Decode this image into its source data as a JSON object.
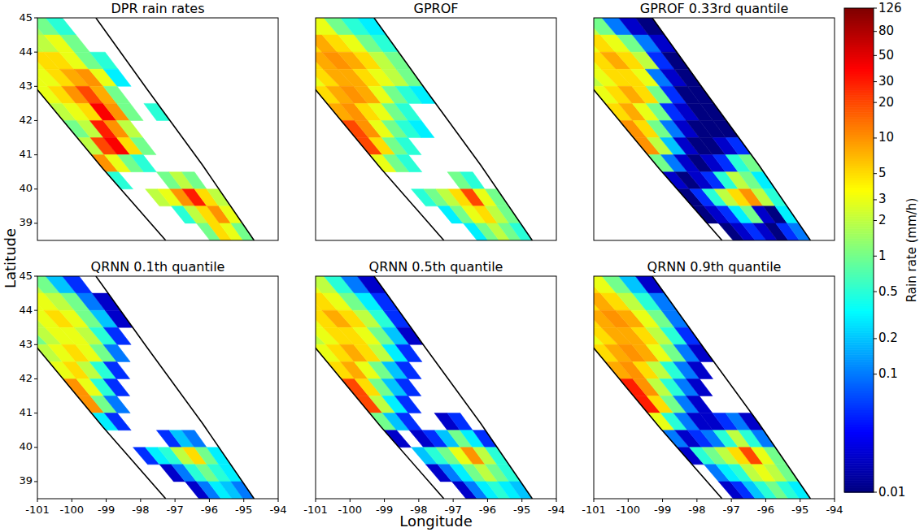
{
  "figure": {
    "xlabel": "Longitude",
    "ylabel": "Latitude",
    "lat_bins": [
      45,
      44.5,
      44,
      43.5,
      43,
      42.5,
      42,
      41.5,
      41,
      40.5,
      40,
      39.5,
      39,
      38.5
    ],
    "swath_edges": [
      {
        "x": [
          -103.2,
          -101,
          -99.1,
          -97.27
        ],
        "y": [
          45,
          42.9,
          40.6,
          38.5
        ]
      },
      {
        "x": [
          -99.3,
          -97.8,
          -96.2,
          -94.7
        ],
        "y": [
          45,
          42.9,
          40.7,
          38.5
        ]
      }
    ],
    "colorbar": {
      "label": "Rain rate (mm/h)",
      "log": true,
      "range": [
        0.01,
        126
      ],
      "ticks": [
        0.01,
        0.1,
        0.2,
        0.5,
        1,
        2,
        3,
        5,
        10,
        20,
        30,
        50,
        80,
        126
      ]
    }
  },
  "chart_data": [
    {
      "type": "heatmap",
      "title": "DPR rain rates",
      "xlim": [
        -101,
        -94
      ],
      "ylim": [
        38.5,
        45
      ],
      "xticks": [
        -101,
        -100,
        -99,
        -98,
        -97,
        -96,
        -95,
        -94
      ],
      "yticks": [
        39,
        40,
        41,
        42,
        43,
        44,
        45
      ],
      "tick_labels": "y",
      "cells": [
        [
          2,
          2,
          2,
          1.5,
          1,
          0.5,
          null,
          null
        ],
        [
          2,
          2,
          2,
          2,
          3,
          1,
          null,
          null
        ],
        [
          3,
          3,
          5,
          5,
          3,
          1,
          0.5,
          null
        ],
        [
          3,
          3,
          5,
          8,
          10,
          3,
          0.3,
          null
        ],
        [
          3,
          5,
          10,
          20,
          8,
          1,
          null,
          null
        ],
        [
          2,
          3,
          5,
          40,
          10,
          1,
          null,
          0.5
        ],
        [
          1,
          2,
          30,
          10,
          2,
          null,
          null,
          null
        ],
        [
          2,
          20,
          40,
          5,
          1,
          null,
          null,
          null
        ],
        [
          10,
          3,
          1,
          0.5,
          null,
          null,
          null,
          null
        ],
        [
          0.5,
          null,
          null,
          null,
          1,
          2,
          1,
          null
        ],
        [
          null,
          null,
          2,
          3,
          10,
          30,
          5,
          2
        ],
        [
          null,
          null,
          null,
          0.5,
          2,
          5,
          10,
          3
        ],
        [
          null,
          null,
          null,
          null,
          1,
          5,
          3,
          1
        ]
      ]
    },
    {
      "type": "heatmap",
      "title": "GPROF",
      "xlim": [
        -101,
        -94
      ],
      "ylim": [
        38.5,
        45
      ],
      "xticks": [
        -101,
        -100,
        -99,
        -98,
        -97,
        -96,
        -95,
        -94
      ],
      "yticks": [
        39,
        40,
        41,
        42,
        43,
        44,
        45
      ],
      "tick_labels": false,
      "cells": [
        [
          1,
          1,
          2,
          3,
          3,
          1,
          0.5,
          0.3
        ],
        [
          2,
          3,
          5,
          8,
          5,
          3,
          1,
          0.5
        ],
        [
          3,
          5,
          8,
          10,
          8,
          5,
          2,
          1
        ],
        [
          3,
          5,
          8,
          8,
          5,
          3,
          2,
          1
        ],
        [
          5,
          8,
          10,
          8,
          3,
          1,
          0.5,
          0.3
        ],
        [
          8,
          10,
          5,
          3,
          1,
          0.5,
          null,
          null
        ],
        [
          20,
          10,
          3,
          1,
          0.5,
          0.3,
          null,
          null
        ],
        [
          20,
          5,
          1,
          0.5,
          null,
          null,
          null,
          null
        ],
        [
          3,
          1,
          0.5,
          null,
          null,
          null,
          null,
          null
        ],
        [
          null,
          null,
          null,
          null,
          null,
          1,
          0.5,
          null
        ],
        [
          null,
          0.5,
          1,
          2,
          5,
          20,
          3,
          1
        ],
        [
          null,
          null,
          0.3,
          1,
          3,
          5,
          2,
          1
        ],
        [
          null,
          null,
          null,
          0.3,
          1,
          2,
          1,
          0.5
        ]
      ]
    },
    {
      "type": "heatmap",
      "title": "GPROF 0.33rd quantile",
      "xlim": [
        -101,
        -94
      ],
      "ylim": [
        38.5,
        45
      ],
      "xticks": [
        -101,
        -100,
        -99,
        -98,
        -97,
        -96,
        -95,
        -94
      ],
      "yticks": [
        39,
        40,
        41,
        42,
        43,
        44,
        45
      ],
      "tick_labels": false,
      "cells": [
        [
          0.5,
          1,
          2,
          2,
          1,
          0.1,
          0.02,
          0.01
        ],
        [
          1,
          2,
          3,
          5,
          3,
          1,
          0.1,
          0.02
        ],
        [
          2,
          3,
          5,
          8,
          5,
          2,
          0.05,
          0.01
        ],
        [
          2,
          3,
          5,
          5,
          3,
          0.1,
          0.02,
          0.01
        ],
        [
          3,
          5,
          8,
          5,
          1,
          0.05,
          0.01,
          0.01
        ],
        [
          5,
          8,
          3,
          1,
          0.05,
          0.02,
          0.01,
          0.01
        ],
        [
          10,
          5,
          1,
          0.1,
          0.02,
          0.01,
          0.01,
          0.01
        ],
        [
          10,
          2,
          0.2,
          0.02,
          0.01,
          0.01,
          0.02,
          0.05
        ],
        [
          1,
          0.1,
          0.02,
          0.01,
          0.02,
          0.05,
          0.5,
          1
        ],
        [
          0.02,
          0.01,
          0.02,
          0.05,
          0.5,
          2,
          1,
          0.3
        ],
        [
          0.01,
          0.05,
          0.5,
          2,
          5,
          10,
          2,
          0.5
        ],
        [
          0.01,
          0.02,
          0.05,
          0.3,
          1,
          0.02,
          0.01,
          0.3
        ],
        [
          null,
          0.01,
          0.02,
          0.05,
          0.02,
          0.01,
          0.05,
          0.1
        ]
      ]
    },
    {
      "type": "heatmap",
      "title": "QRNN 0.1th quantile",
      "xlim": [
        -101,
        -94
      ],
      "ylim": [
        38.5,
        45
      ],
      "xticks": [
        -101,
        -100,
        -99,
        -98,
        -97,
        -96,
        -95,
        -94
      ],
      "yticks": [
        39,
        40,
        41,
        42,
        43,
        44,
        45
      ],
      "tick_labels": true,
      "cells": [
        [
          0.3,
          0.5,
          1,
          2,
          1,
          0.2,
          0.05,
          null
        ],
        [
          1,
          2,
          3,
          3,
          2,
          1,
          0.1,
          0.02
        ],
        [
          1,
          2,
          3,
          5,
          3,
          1,
          0.2,
          0.02
        ],
        [
          1,
          2,
          3,
          3,
          2,
          0.5,
          0.05,
          null
        ],
        [
          2,
          3,
          5,
          3,
          1,
          0.1,
          null,
          null
        ],
        [
          3,
          5,
          2,
          0.5,
          0.05,
          null,
          null,
          null
        ],
        [
          10,
          3,
          0.5,
          0.05,
          null,
          null,
          null,
          null
        ],
        [
          10,
          1,
          0.1,
          null,
          null,
          null,
          null,
          null
        ],
        [
          0.3,
          0.05,
          null,
          null,
          null,
          null,
          null,
          null
        ],
        [
          null,
          null,
          null,
          null,
          0.05,
          0.2,
          0.1,
          null
        ],
        [
          null,
          0.05,
          0.3,
          0.5,
          2,
          5,
          1,
          0.3
        ],
        [
          null,
          null,
          0.02,
          0.1,
          0.5,
          1,
          0.5,
          0.3
        ],
        [
          null,
          null,
          null,
          0.02,
          0.1,
          0.3,
          0.2,
          0.1
        ]
      ]
    },
    {
      "type": "heatmap",
      "title": "QRNN 0.5th quantile",
      "xlim": [
        -101,
        -94
      ],
      "ylim": [
        38.5,
        45
      ],
      "xticks": [
        -101,
        -100,
        -99,
        -98,
        -97,
        -96,
        -95,
        -94
      ],
      "yticks": [
        39,
        40,
        41,
        42,
        43,
        44,
        45
      ],
      "tick_labels": "x",
      "cells": [
        [
          0.5,
          1,
          2,
          3,
          2,
          0.5,
          0.1,
          0.02
        ],
        [
          1,
          2,
          5,
          5,
          3,
          1,
          0.3,
          0.05
        ],
        [
          2,
          3,
          5,
          8,
          5,
          2,
          0.5,
          0.05
        ],
        [
          2,
          3,
          5,
          5,
          3,
          1,
          0.2,
          0.02
        ],
        [
          3,
          5,
          8,
          5,
          2,
          0.3,
          0.05,
          null
        ],
        [
          5,
          8,
          3,
          1,
          0.2,
          0.05,
          null,
          null
        ],
        [
          20,
          5,
          1,
          0.2,
          0.05,
          null,
          null,
          null
        ],
        [
          20,
          2,
          0.3,
          0.05,
          null,
          null,
          null,
          null
        ],
        [
          1,
          0.2,
          0.05,
          null,
          null,
          0.02,
          0.05,
          null
        ],
        [
          0.02,
          null,
          0.02,
          0.05,
          0.2,
          1,
          0.3,
          0.05
        ],
        [
          null,
          0.2,
          0.5,
          1,
          3,
          10,
          2,
          0.5
        ],
        [
          null,
          0.02,
          0.1,
          0.3,
          1,
          2,
          1,
          0.5
        ],
        [
          null,
          null,
          0.02,
          0.1,
          0.3,
          0.5,
          0.3,
          0.2
        ]
      ]
    },
    {
      "type": "heatmap",
      "title": "QRNN 0.9th quantile",
      "xlim": [
        -101,
        -94
      ],
      "ylim": [
        38.5,
        45
      ],
      "xticks": [
        -101,
        -100,
        -99,
        -98,
        -97,
        -96,
        -95,
        -94
      ],
      "yticks": [
        39,
        40,
        41,
        42,
        43,
        44,
        45
      ],
      "tick_labels": "x",
      "cells": [
        [
          1,
          2,
          3,
          5,
          3,
          1,
          0.2,
          0.02
        ],
        [
          2,
          3,
          5,
          8,
          5,
          2,
          0.5,
          0.1
        ],
        [
          3,
          5,
          8,
          10,
          8,
          3,
          1,
          0.1
        ],
        [
          3,
          5,
          8,
          8,
          5,
          2,
          0.5,
          0.05
        ],
        [
          5,
          8,
          10,
          8,
          3,
          1,
          0.1,
          0.02
        ],
        [
          8,
          10,
          5,
          2,
          0.5,
          0.1,
          0.02,
          null
        ],
        [
          30,
          10,
          2,
          0.5,
          0.1,
          0.02,
          null,
          null
        ],
        [
          30,
          5,
          1,
          0.1,
          0.02,
          null,
          null,
          null
        ],
        [
          3,
          0.5,
          0.1,
          0.02,
          0.02,
          0.05,
          0.1,
          0.02
        ],
        [
          0.1,
          0.02,
          0.05,
          0.1,
          0.5,
          2,
          0.5,
          0.1
        ],
        [
          0.02,
          0.5,
          1,
          2,
          5,
          20,
          3,
          1
        ],
        [
          null,
          0.1,
          0.3,
          0.5,
          2,
          3,
          2,
          1
        ],
        [
          null,
          0.02,
          0.05,
          0.2,
          0.5,
          1,
          0.5,
          0.3
        ]
      ]
    }
  ]
}
